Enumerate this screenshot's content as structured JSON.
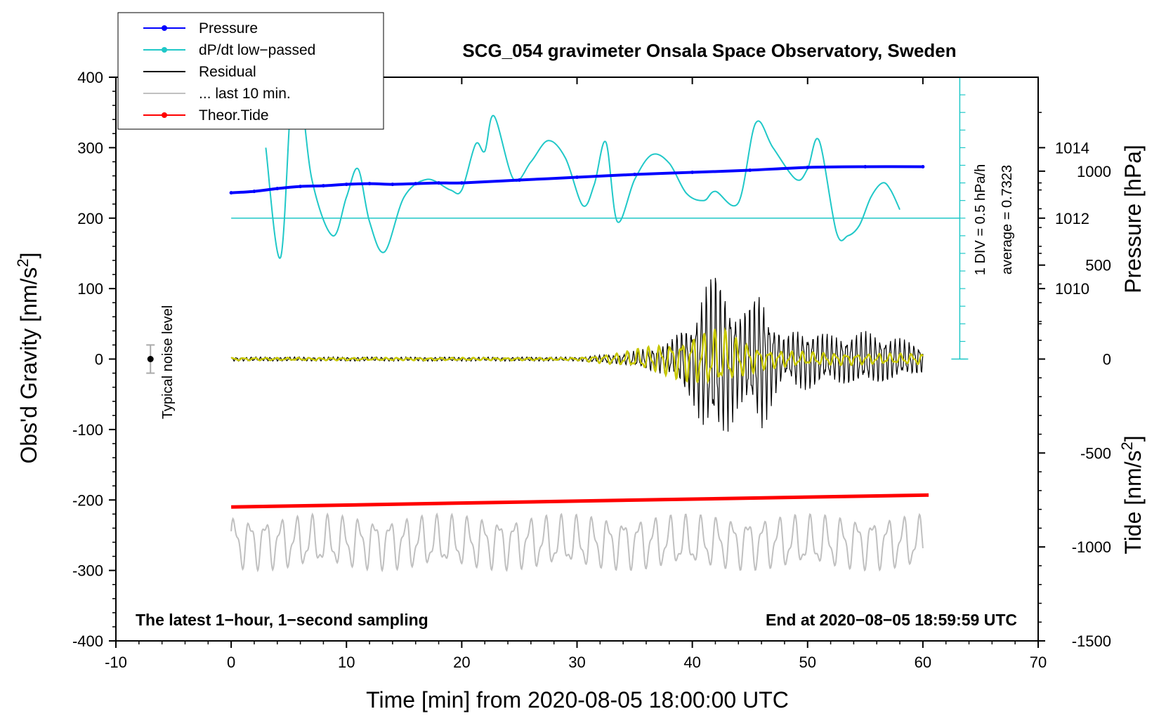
{
  "chart_data": {
    "type": "line",
    "title": "SCG_054 gravimeter Onsala Space Observatory, Sweden",
    "xlabel": "Time [min] from 2020-08-05 18:00:00 UTC",
    "ylabel_left": "Obs'd Gravity [nm/s",
    "ylabel_left_sup": "2",
    "ylabel_left_end": "]",
    "ylabel_right_pressure": "Pressure [hPa]",
    "ylabel_right_tide": "Tide [nm/s",
    "ylabel_right_tide_sup": "2",
    "ylabel_right_tide_end": "]",
    "xlim": [
      -10,
      70
    ],
    "ylim": [
      -400,
      400
    ],
    "x_ticks": [
      "-10",
      "0",
      "10",
      "20",
      "30",
      "40",
      "50",
      "60",
      "70"
    ],
    "x_tick_values": [
      -10,
      0,
      10,
      20,
      30,
      40,
      50,
      60,
      70
    ],
    "y_ticks": [
      "400",
      "300",
      "200",
      "100",
      "0",
      "-100",
      "-200",
      "-300",
      "-400"
    ],
    "y_tick_values": [
      400,
      300,
      200,
      100,
      0,
      -100,
      -200,
      -300,
      -400
    ],
    "pressure_ticks": [
      "1014",
      "1012",
      "1010"
    ],
    "pressure_tick_gravity_positions": [
      300,
      200,
      100
    ],
    "tide_ticks": [
      "1000",
      "500",
      "0",
      "-500",
      "-1000",
      "-1500"
    ],
    "tide_tick_values": [
      1000,
      500,
      0,
      -500,
      -1000,
      -1500
    ],
    "tide_range": [
      -1500,
      1500
    ],
    "legend": [
      {
        "label": "Pressure",
        "color": "#0000ff",
        "marker": true
      },
      {
        "label": "dP/dt low−passed",
        "color": "#20c8c8",
        "marker": true
      },
      {
        "label": "Residual",
        "color": "#000000",
        "marker": false
      },
      {
        "label": "... last 10 min.",
        "color": "#c0c0c0",
        "marker": false
      },
      {
        "label": "Theor.Tide",
        "color": "#ff0000",
        "marker": true
      }
    ],
    "annotations": {
      "noise": "Typical noise level",
      "div": "1 DIV = 0.5 hPa/h",
      "average": "average = 0.7323",
      "bottom_left": "The latest 1−hour, 1−second sampling",
      "bottom_right": "End at 2020−08−05 18:59:59 UTC"
    },
    "series": [
      {
        "name": "Pressure",
        "color": "#0000ff",
        "x": [
          0,
          2,
          4,
          6,
          8,
          10,
          12,
          14,
          16,
          18,
          20,
          25,
          30,
          35,
          40,
          45,
          50,
          55,
          60
        ],
        "y": [
          236,
          238,
          242,
          245,
          246,
          248,
          249,
          248,
          249,
          250,
          250,
          254,
          258,
          262,
          265,
          268,
          272,
          273,
          273
        ]
      },
      {
        "name": "dP/dt low-passed",
        "color": "#20c8c8",
        "x": [
          3,
          4.3,
          5.5,
          7,
          8.8,
          10,
          11,
          12,
          13.3,
          15,
          17,
          19,
          20,
          21.2,
          22,
          22.8,
          24.5,
          26,
          27.5,
          29,
          30.5,
          31.5,
          32.5,
          33.5,
          35,
          36.5,
          38,
          39.5,
          41,
          42,
          44,
          45.5,
          47,
          49,
          50,
          51,
          52.5,
          53.5,
          54.5,
          55.5,
          56.5,
          57.2,
          58
        ],
        "y": [
          300,
          145,
          420,
          255,
          175,
          230,
          270,
          195,
          152,
          230,
          255,
          240,
          240,
          305,
          295,
          345,
          255,
          280,
          310,
          285,
          218,
          248,
          308,
          195,
          255,
          290,
          278,
          235,
          225,
          238,
          222,
          335,
          300,
          255,
          270,
          310,
          180,
          175,
          190,
          230,
          250,
          240,
          212
        ]
      },
      {
        "name": "Residual",
        "color": "#000000",
        "x": [
          0,
          10,
          20,
          30,
          34,
          38,
          40,
          41,
          42,
          43,
          44,
          45,
          46,
          47,
          48,
          49,
          50,
          52,
          55,
          58,
          60
        ],
        "y": [
          0,
          0,
          0,
          0,
          0,
          0,
          0,
          0,
          0,
          0,
          0,
          0,
          0,
          0,
          0,
          0,
          0,
          0,
          0,
          0,
          0
        ],
        "amplitude": [
          3,
          3,
          3,
          3,
          8,
          25,
          60,
          110,
          130,
          110,
          70,
          80,
          110,
          60,
          30,
          45,
          45,
          35,
          40,
          30,
          20
        ]
      },
      {
        "name": "... last 10 min.",
        "color": "#c0c0c0",
        "x": [
          0,
          60
        ],
        "y": [
          -260,
          -260
        ],
        "amplitude": [
          40,
          40
        ]
      },
      {
        "name": "Theor.Tide",
        "color": "#ff0000",
        "x": [
          0,
          60.5
        ],
        "y": [
          -210,
          -193
        ]
      },
      {
        "name": "Residual filtered",
        "color": "#c8c800",
        "x": [
          0,
          30,
          34,
          38,
          41,
          42.5,
          44,
          46,
          50,
          55,
          60
        ],
        "y": [
          0,
          0,
          0,
          0,
          0,
          0,
          0,
          0,
          0,
          0,
          0
        ],
        "amplitude": [
          2,
          2,
          10,
          25,
          40,
          45,
          30,
          15,
          10,
          8,
          8
        ]
      }
    ]
  }
}
